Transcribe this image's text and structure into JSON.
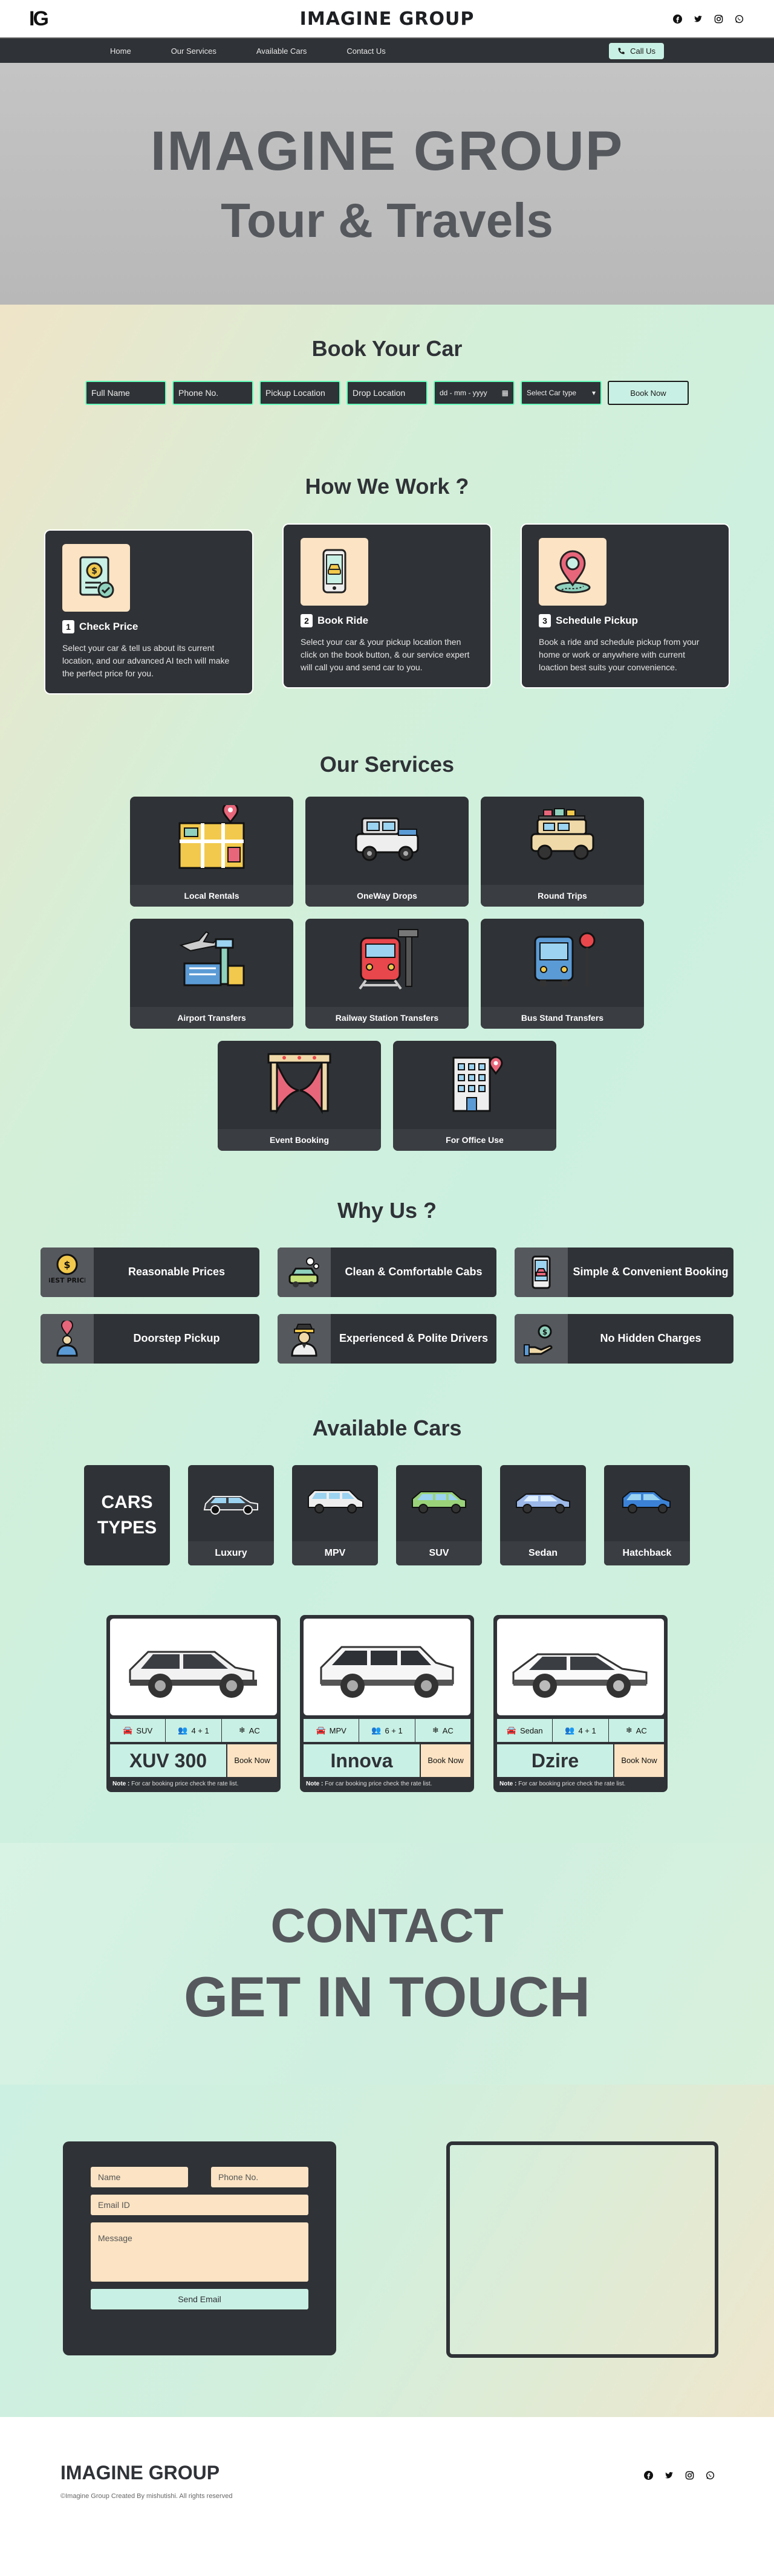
{
  "header": {
    "logo": "IG",
    "brand": "IMAGINE GROUP",
    "socials": [
      "facebook-icon",
      "twitter-icon",
      "instagram-icon",
      "whatsapp-icon"
    ]
  },
  "nav": {
    "items": [
      "Home",
      "Our Services",
      "Available Cars",
      "Contact Us"
    ],
    "call": "Call Us"
  },
  "hero": {
    "line1": "IMAGINE GROUP",
    "line2": "Tour & Travels"
  },
  "book": {
    "title": "Book Your Car",
    "full_name": "Full Name",
    "phone": "Phone No.",
    "pickup": "Pickup Location",
    "drop": "Drop Location",
    "date": "dd - mm - yyyy",
    "car_type": "Select Car type",
    "submit": "Book Now"
  },
  "how": {
    "title": "How We Work ?",
    "steps": [
      {
        "num": "1",
        "title": "Check Price",
        "text": "Select your car & tell us about its current location, and our advanced AI tech will make the perfect price for you."
      },
      {
        "num": "2",
        "title": "Book Ride",
        "text": "Select your car & your pickup location then click on the book button, & our service expert will call you and send car to you."
      },
      {
        "num": "3",
        "title": "Schedule Pickup",
        "text": "Book a ride and schedule pickup from your home or work or anywhere with current loaction best suits your convenience."
      }
    ]
  },
  "services": {
    "title": "Our Services",
    "items": [
      "Local Rentals",
      "OneWay Drops",
      "Round Trips",
      "Airport Transfers",
      "Railway Station Transfers",
      "Bus Stand Transfers",
      "Event Booking",
      "For Office Use"
    ]
  },
  "why": {
    "title": "Why Us ?",
    "items": [
      "Reasonable Prices",
      "Clean & Comfortable Cabs",
      "Simple & Convenient Booking",
      "Doorstep Pickup",
      "Experienced & Polite Drivers",
      "No Hidden Charges"
    ],
    "badge": "BEST PRICE"
  },
  "cars": {
    "title": "Available Cars",
    "types_label": "CARS TYPES",
    "types": [
      "Luxury",
      "MPV",
      "SUV",
      "Sedan",
      "Hatchback"
    ],
    "fleet": [
      {
        "name": "XUV 300",
        "type": "SUV",
        "seats": "4 + 1",
        "ac": "AC",
        "book": "Book Now"
      },
      {
        "name": "Innova",
        "type": "MPV",
        "seats": "6 + 1",
        "ac": "AC",
        "book": "Book Now"
      },
      {
        "name": "Dzire",
        "type": "Sedan",
        "seats": "4 + 1",
        "ac": "AC",
        "book": "Book Now"
      }
    ],
    "note_label": "Note :",
    "note": "For car booking price check the rate list."
  },
  "contact": {
    "line1": "CONTACT",
    "line2": "GET IN TOUCH",
    "name": "Name",
    "phone": "Phone No.",
    "email": "Email ID",
    "message": "Message",
    "send": "Send Email"
  },
  "footer": {
    "brand": "IMAGINE GROUP",
    "copy": "©Imagine Group Created By mishutishi. All rights reserved"
  },
  "colors": {
    "dark": "#2f3236",
    "mint": "#c9f0e4",
    "peach": "#fbe3c3"
  }
}
